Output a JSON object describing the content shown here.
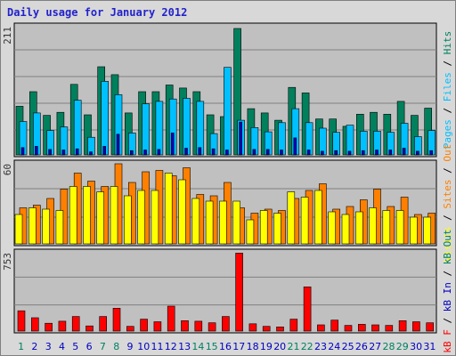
{
  "title": "Daily usage for January 2012",
  "colors": {
    "hits": "#00805c",
    "files": "#00c0ff",
    "pages": "#0000c0",
    "visits": "#ffff00",
    "sites": "#ff8000",
    "kbf": "#ff0000",
    "kbin": "#0000c0",
    "kbout": "#008060",
    "weekend_day": "#008060",
    "weekday_day": "#0000c0",
    "plot_bg": "#c0c0c0",
    "grid": "#808080"
  },
  "chart_data": [
    {
      "type": "bar",
      "panel": "top",
      "x": [
        1,
        2,
        3,
        4,
        5,
        6,
        7,
        8,
        9,
        10,
        11,
        12,
        13,
        14,
        15,
        16,
        17,
        18,
        19,
        20,
        21,
        22,
        23,
        24,
        25,
        26,
        27,
        28,
        29,
        30,
        31
      ],
      "ylim": [
        0,
        211
      ],
      "max_tick_label": "211",
      "right_label_parts": [
        {
          "text": "Pages",
          "color_key": "pages_text"
        },
        {
          "text": " / ",
          "color_key": "sep"
        },
        {
          "text": "Files",
          "color_key": "files"
        },
        {
          "text": " / ",
          "color_key": "sep"
        },
        {
          "text": "Hits",
          "color_key": "hits"
        }
      ],
      "series": [
        {
          "name": "Hits",
          "color_key": "hits",
          "values": [
            80,
            104,
            65,
            70,
            116,
            66,
            145,
            132,
            69,
            104,
            104,
            115,
            110,
            104,
            66,
            63,
            208,
            76,
            69,
            57,
            111,
            102,
            59,
            59,
            47,
            67,
            70,
            67,
            88,
            65,
            77
          ]
        },
        {
          "name": "Files",
          "color_key": "files",
          "values": [
            55,
            69,
            40,
            46,
            90,
            29,
            121,
            99,
            36,
            84,
            88,
            92,
            93,
            88,
            35,
            144,
            57,
            45,
            38,
            53,
            76,
            53,
            44,
            37,
            49,
            39,
            39,
            37,
            52,
            30,
            40
          ]
        },
        {
          "name": "Pages",
          "color_key": "pages",
          "values": [
            12,
            14,
            9,
            8,
            10,
            5,
            14,
            34,
            7,
            8,
            9,
            36,
            11,
            12,
            10,
            8,
            54,
            9,
            9,
            8,
            28,
            8,
            6,
            7,
            6,
            7,
            8,
            8,
            11,
            6,
            7
          ]
        }
      ]
    },
    {
      "type": "bar",
      "panel": "middle",
      "x": [
        1,
        2,
        3,
        4,
        5,
        6,
        7,
        8,
        9,
        10,
        11,
        12,
        13,
        14,
        15,
        16,
        17,
        18,
        19,
        20,
        21,
        22,
        23,
        24,
        25,
        26,
        27,
        28,
        29,
        30,
        31
      ],
      "ylim": [
        0,
        60
      ],
      "max_tick_label": "60",
      "right_label_parts": [
        {
          "text": "Visits",
          "color_key": "visits_text"
        },
        {
          "text": " / ",
          "color_key": "sep"
        },
        {
          "text": "Sites",
          "color_key": "sites"
        },
        {
          "text": " / ",
          "color_key": "sep"
        },
        {
          "text": "Out",
          "color_key": "sites"
        }
      ],
      "series": [
        {
          "name": "Sites",
          "color_key": "sites",
          "values": [
            27,
            29,
            34,
            41,
            53,
            47,
            43,
            60,
            46,
            54,
            55,
            51,
            57,
            37,
            36,
            46,
            27,
            23,
            26,
            25,
            34,
            40,
            45,
            26,
            28,
            33,
            41,
            28,
            35,
            22,
            23
          ]
        },
        {
          "name": "Visits",
          "color_key": "visits",
          "values": [
            22,
            27,
            26,
            25,
            43,
            43,
            39,
            43,
            36,
            40,
            40,
            53,
            48,
            34,
            32,
            32,
            32,
            18,
            25,
            23,
            39,
            35,
            40,
            24,
            22,
            24,
            27,
            25,
            25,
            20,
            20
          ]
        }
      ]
    },
    {
      "type": "bar",
      "panel": "bottom",
      "x": [
        1,
        2,
        3,
        4,
        5,
        6,
        7,
        8,
        9,
        10,
        11,
        12,
        13,
        14,
        15,
        16,
        17,
        18,
        19,
        20,
        21,
        22,
        23,
        24,
        25,
        26,
        27,
        28,
        29,
        30,
        31
      ],
      "ylim": [
        0,
        753
      ],
      "max_tick_label": "753",
      "right_label_parts": [
        {
          "text": "kB F",
          "color_key": "kbf"
        },
        {
          "text": " / ",
          "color_key": "sep"
        },
        {
          "text": "kB In",
          "color_key": "kbin"
        },
        {
          "text": " / ",
          "color_key": "sep"
        },
        {
          "text": "kB Out",
          "color_key": "kbout"
        }
      ],
      "series": [
        {
          "name": "kB F",
          "color_key": "kbf",
          "values": [
            195,
            128,
            75,
            95,
            140,
            50,
            140,
            220,
            45,
            115,
            90,
            240,
            100,
            95,
            80,
            140,
            750,
            70,
            45,
            40,
            115,
            425,
            60,
            105,
            55,
            65,
            60,
            55,
            100,
            90,
            80
          ]
        }
      ]
    }
  ],
  "days": [
    {
      "label": "1",
      "weekend": true
    },
    {
      "label": "2",
      "weekend": false
    },
    {
      "label": "3",
      "weekend": false
    },
    {
      "label": "4",
      "weekend": false
    },
    {
      "label": "5",
      "weekend": false
    },
    {
      "label": "6",
      "weekend": false
    },
    {
      "label": "7",
      "weekend": true
    },
    {
      "label": "8",
      "weekend": true
    },
    {
      "label": "9",
      "weekend": false
    },
    {
      "label": "10",
      "weekend": false
    },
    {
      "label": "11",
      "weekend": false
    },
    {
      "label": "12",
      "weekend": false
    },
    {
      "label": "13",
      "weekend": false
    },
    {
      "label": "14",
      "weekend": true
    },
    {
      "label": "15",
      "weekend": true
    },
    {
      "label": "16",
      "weekend": false
    },
    {
      "label": "17",
      "weekend": false
    },
    {
      "label": "18",
      "weekend": false
    },
    {
      "label": "19",
      "weekend": false
    },
    {
      "label": "20",
      "weekend": false
    },
    {
      "label": "21",
      "weekend": true
    },
    {
      "label": "22",
      "weekend": true
    },
    {
      "label": "23",
      "weekend": false
    },
    {
      "label": "24",
      "weekend": false
    },
    {
      "label": "25",
      "weekend": false
    },
    {
      "label": "26",
      "weekend": false
    },
    {
      "label": "27",
      "weekend": false
    },
    {
      "label": "28",
      "weekend": true
    },
    {
      "label": "29",
      "weekend": true
    },
    {
      "label": "30",
      "weekend": false
    },
    {
      "label": "31",
      "weekend": false
    }
  ]
}
